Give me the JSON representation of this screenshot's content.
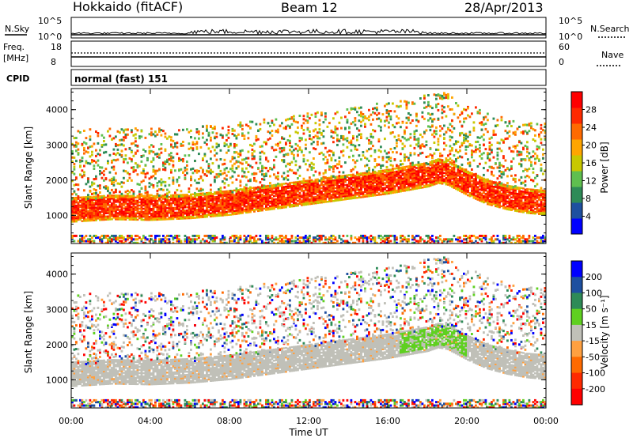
{
  "header": {
    "station": "Hokkaido (fitACF)",
    "beam": "Beam 12",
    "date": "28/Apr/2013"
  },
  "left_labels": {
    "nsky": "N.Sky",
    "freq": "Freq.",
    "freq_unit": "[MHz]",
    "cpid": "CPID",
    "nsky_top": "10^5",
    "nsky_bottom": "10^0",
    "freq_top": "18",
    "freq_bottom": "8"
  },
  "right_labels": {
    "nsearch": "N.Search",
    "nave": "Nave",
    "nsearch_top": "10^5",
    "nsearch_bottom": "10^0",
    "nave_top": "60",
    "nave_bottom": "0"
  },
  "cpid_text": "normal (fast) 151",
  "colors": {
    "power_scale": [
      "#0000ff",
      "#1e50a0",
      "#2e8b57",
      "#5fbf4f",
      "#c8c800",
      "#ffa500",
      "#ff6a00",
      "#ff2a00",
      "#ff0000"
    ],
    "velocity_scale": [
      "#0000ff",
      "#1e50a0",
      "#2e8b57",
      "#5fd020",
      "#c0c0b8",
      "#ffa040",
      "#ff6a00",
      "#ff2a00",
      "#ff0000"
    ],
    "ground_scatter": "#c0c0b8"
  },
  "chart_data": [
    {
      "type": "heatmap",
      "panel": "power",
      "ylabel": "Slant Range [km]",
      "xlabel": "",
      "yticks": [
        "1000",
        "2000",
        "3000",
        "4000"
      ],
      "ylim": [
        200,
        4600
      ],
      "xlim": [
        "00:00",
        "24:00"
      ],
      "main_echo_band": {
        "description_x_hours": [
          0,
          2,
          4,
          6,
          8,
          10,
          12,
          14,
          16,
          17,
          18,
          18.5,
          19,
          20,
          21,
          22,
          23,
          24
        ],
        "center_km": [
          1150,
          1220,
          1200,
          1250,
          1350,
          1500,
          1650,
          1800,
          1950,
          2050,
          2150,
          2250,
          2200,
          1900,
          1650,
          1500,
          1400,
          1350
        ]
      },
      "colorbar": {
        "label": "Power [dB]",
        "ticks": [
          "4",
          "8",
          "12",
          "16",
          "20",
          "24",
          "28"
        ],
        "range": [
          0,
          32
        ]
      }
    },
    {
      "type": "heatmap",
      "panel": "velocity",
      "ylabel": "Slant Range [km]",
      "xlabel": "Time UT",
      "yticks": [
        "1000",
        "2000",
        "3000",
        "4000"
      ],
      "xticks": [
        "00:00",
        "04:00",
        "08:00",
        "12:00",
        "16:00",
        "20:00",
        "00:00"
      ],
      "ylim": [
        200,
        4600
      ],
      "colorbar": {
        "label": "Velocity [m s⁻¹]",
        "ticks": [
          "200",
          "100",
          "50",
          "15",
          "-15",
          "-50",
          "-100",
          "-200"
        ]
      }
    }
  ]
}
